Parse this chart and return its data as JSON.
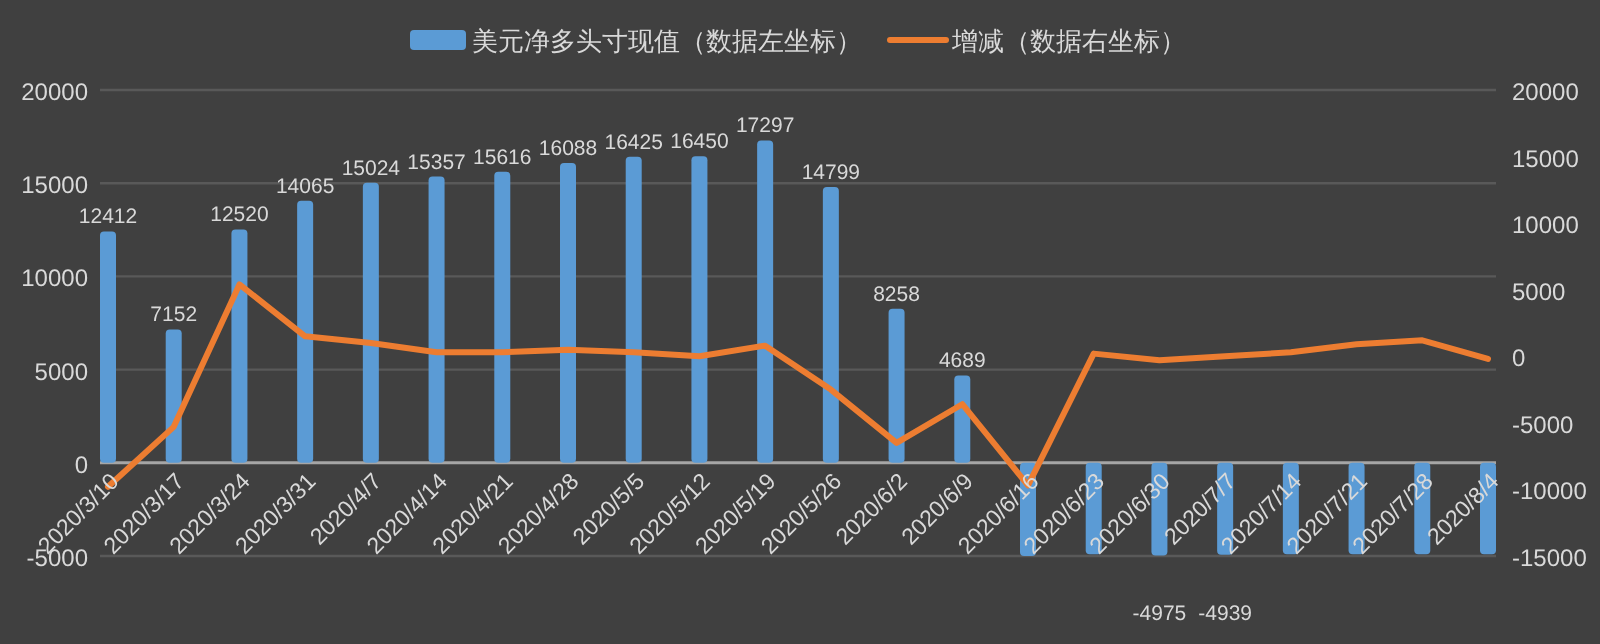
{
  "chart_data": {
    "type": "bar",
    "categories": [
      "2020/3/10",
      "2020/3/17",
      "2020/3/24",
      "2020/3/31",
      "2020/4/7",
      "2020/4/14",
      "2020/4/21",
      "2020/4/28",
      "2020/5/5",
      "2020/5/12",
      "2020/5/19",
      "2020/5/26",
      "2020/6/2",
      "2020/6/9",
      "2020/6/16",
      "2020/6/23",
      "2020/6/30",
      "2020/7/7",
      "2020/7/14",
      "2020/7/21",
      "2020/7/28",
      "2020/8/4"
    ],
    "series": [
      {
        "name": "美元净多头寸现值（数据左坐标）",
        "color": "#5b9bd5",
        "values": [
          12412,
          7152,
          12520,
          14065,
          15024,
          15357,
          15616,
          16088,
          16425,
          16450,
          17297,
          14799,
          8258,
          4689,
          -5000,
          -4900,
          -4975,
          -4939,
          -4900,
          -4900,
          -4900,
          -4900
        ],
        "value_labels": [
          "12412",
          "7152",
          "12520",
          "14065",
          "15024",
          "15357",
          "15616",
          "16088",
          "16425",
          "16450",
          "17297",
          "14799",
          "8258",
          "4689",
          null,
          null,
          "-4975",
          "-4939",
          null,
          null,
          null,
          null
        ]
      },
      {
        "name": "增减（数据右坐标）",
        "type": "line",
        "axis": "y2",
        "color": "#ed7d31",
        "values": [
          -9800,
          -5300,
          5400,
          1500,
          1000,
          300,
          300,
          500,
          300,
          0,
          800,
          -2500,
          -6500,
          -3600,
          -9700,
          200,
          -300,
          0,
          300,
          900,
          1200,
          -200
        ]
      }
    ],
    "ylim": [
      -5000,
      20000
    ],
    "yticks": [
      -5000,
      0,
      5000,
      10000,
      15000,
      20000
    ],
    "y2lim": [
      -15000,
      20000
    ],
    "y2ticks": [
      -15000,
      -10000,
      -5000,
      0,
      5000,
      10000,
      15000,
      20000
    ],
    "grid": "y",
    "legend": "top"
  }
}
